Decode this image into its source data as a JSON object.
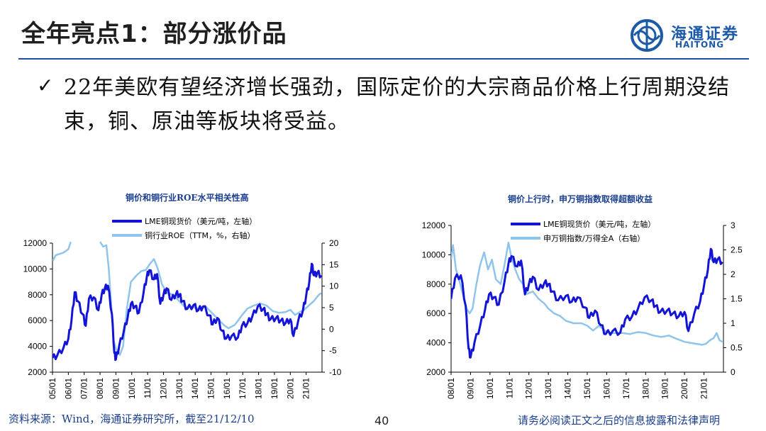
{
  "header": {
    "title": "全年亮点1：部分涨价品",
    "logo_cn": "海通证券",
    "logo_en": "HAITONG"
  },
  "bullet": {
    "check": "✓",
    "text": "22年美欧有望经济增长强劲，国际定价的大宗商品价格上行周期没结束，铜、原油等板块将受益。"
  },
  "footer": {
    "source": "资料来源：Wind，海通证券研究所，截至21/12/10",
    "page": "40",
    "disclaimer": "请务必阅读正文之后的信息披露和法律声明"
  },
  "colors": {
    "dark_blue": "#1414d6",
    "light_blue": "#8fc4ec",
    "brand": "#1c5aa8"
  },
  "chart_data": [
    {
      "type": "line",
      "title": "铜价和铜行业ROE水平相关性高",
      "x_tick_labels": [
        "05/01",
        "06/01",
        "07/01",
        "08/01",
        "09/01",
        "10/01",
        "11/01",
        "12/01",
        "13/01",
        "14/01",
        "15/01",
        "16/01",
        "17/01",
        "18/01",
        "19/01",
        "20/01",
        "21/01"
      ],
      "x_start_year": 2005,
      "y_left": {
        "ticks": [
          2000,
          4000,
          6000,
          8000,
          10000,
          12000
        ],
        "ylim": [
          2000,
          12000
        ]
      },
      "y_right": {
        "ticks": [
          -10,
          -5,
          0,
          5,
          10,
          15,
          20
        ],
        "ylim": [
          -10,
          20
        ]
      },
      "series": [
        {
          "name": "LME铜现货价（美元/吨，左轴）",
          "axis": "left",
          "color": "#1414d6",
          "width": 3,
          "points": [
            [
              2005.0,
              3100
            ],
            [
              2005.3,
              3300
            ],
            [
              2005.7,
              3900
            ],
            [
              2006.0,
              4600
            ],
            [
              2006.2,
              6000
            ],
            [
              2006.4,
              8200
            ],
            [
              2006.6,
              7500
            ],
            [
              2006.9,
              6500
            ],
            [
              2007.1,
              5600
            ],
            [
              2007.3,
              7700
            ],
            [
              2007.6,
              7800
            ],
            [
              2007.9,
              6800
            ],
            [
              2008.1,
              8000
            ],
            [
              2008.3,
              8500
            ],
            [
              2008.5,
              8700
            ],
            [
              2008.75,
              6500
            ],
            [
              2008.9,
              3500
            ],
            [
              2009.0,
              3000
            ],
            [
              2009.2,
              4000
            ],
            [
              2009.5,
              5200
            ],
            [
              2009.75,
              6300
            ],
            [
              2009.95,
              7300
            ],
            [
              2010.2,
              7100
            ],
            [
              2010.45,
              6600
            ],
            [
              2010.75,
              8200
            ],
            [
              2010.95,
              9400
            ],
            [
              2011.1,
              9900
            ],
            [
              2011.4,
              9200
            ],
            [
              2011.6,
              9600
            ],
            [
              2011.8,
              7300
            ],
            [
              2012.0,
              8000
            ],
            [
              2012.2,
              8500
            ],
            [
              2012.5,
              7600
            ],
            [
              2012.8,
              8100
            ],
            [
              2013.0,
              8000
            ],
            [
              2013.2,
              7500
            ],
            [
              2013.5,
              6900
            ],
            [
              2013.9,
              7200
            ],
            [
              2014.2,
              6800
            ],
            [
              2014.5,
              7100
            ],
            [
              2014.9,
              6400
            ],
            [
              2015.1,
              5700
            ],
            [
              2015.4,
              6200
            ],
            [
              2015.7,
              5200
            ],
            [
              2015.95,
              4600
            ],
            [
              2016.3,
              4800
            ],
            [
              2016.7,
              4700
            ],
            [
              2016.95,
              5600
            ],
            [
              2017.3,
              5800
            ],
            [
              2017.6,
              6300
            ],
            [
              2017.95,
              7100
            ],
            [
              2018.3,
              6900
            ],
            [
              2018.5,
              6500
            ],
            [
              2018.75,
              6100
            ],
            [
              2019.1,
              6200
            ],
            [
              2019.4,
              6000
            ],
            [
              2019.7,
              5800
            ],
            [
              2020.0,
              6100
            ],
            [
              2020.2,
              4800
            ],
            [
              2020.5,
              6000
            ],
            [
              2020.8,
              6800
            ],
            [
              2021.0,
              7900
            ],
            [
              2021.2,
              9000
            ],
            [
              2021.35,
              10400
            ],
            [
              2021.5,
              9500
            ],
            [
              2021.7,
              9700
            ],
            [
              2021.95,
              9500
            ]
          ]
        },
        {
          "name": "铜行业ROE（TTM，%，右轴）",
          "axis": "right",
          "color": "#8fc4ec",
          "width": 2.5,
          "points": [
            [
              2005.0,
              15.8
            ],
            [
              2005.2,
              17.2
            ],
            [
              2005.45,
              17.5
            ],
            [
              2005.7,
              17.8
            ],
            [
              2006.0,
              18.6
            ],
            [
              2006.15,
              20.3
            ]
          ],
          "points2": [
            [
              2008.0,
              20.3
            ],
            [
              2008.2,
              19.2
            ],
            [
              2008.4,
              19.5
            ],
            [
              2008.55,
              14.0
            ],
            [
              2008.7,
              6.0
            ],
            [
              2008.85,
              -2.5
            ],
            [
              2009.0,
              -4.5
            ],
            [
              2009.25,
              -6.0
            ],
            [
              2009.45,
              -4.0
            ],
            [
              2009.7,
              5.0
            ],
            [
              2009.95,
              11.0
            ],
            [
              2010.3,
              12.5
            ],
            [
              2010.6,
              13.5
            ],
            [
              2010.9,
              13.8
            ],
            [
              2011.15,
              15.2
            ],
            [
              2011.4,
              16.3
            ],
            [
              2011.65,
              14.0
            ],
            [
              2011.9,
              10.5
            ],
            [
              2012.2,
              8.5
            ],
            [
              2012.6,
              8.0
            ],
            [
              2013.0,
              6.5
            ],
            [
              2013.4,
              5.0
            ],
            [
              2013.8,
              5.3
            ],
            [
              2014.2,
              4.6
            ],
            [
              2014.6,
              5.5
            ],
            [
              2015.0,
              4.0
            ],
            [
              2015.4,
              2.5
            ],
            [
              2015.8,
              1.0
            ],
            [
              2016.1,
              0.2
            ],
            [
              2016.5,
              1.0
            ],
            [
              2016.9,
              3.0
            ],
            [
              2017.3,
              4.8
            ],
            [
              2017.7,
              5.5
            ],
            [
              2018.1,
              6.0
            ],
            [
              2018.5,
              5.5
            ],
            [
              2018.9,
              4.2
            ],
            [
              2019.3,
              3.8
            ],
            [
              2019.7,
              4.0
            ],
            [
              2020.0,
              4.5
            ],
            [
              2020.3,
              3.3
            ],
            [
              2020.6,
              4.0
            ],
            [
              2020.9,
              4.6
            ],
            [
              2021.2,
              5.6
            ],
            [
              2021.5,
              6.6
            ],
            [
              2021.8,
              8.0
            ],
            [
              2021.95,
              8.4
            ]
          ]
        }
      ]
    },
    {
      "type": "line",
      "title": "铜价上行时，申万铜指数取得超额收益",
      "x_tick_labels": [
        "08/01",
        "09/01",
        "10/01",
        "11/01",
        "12/01",
        "13/01",
        "14/01",
        "15/01",
        "16/01",
        "17/01",
        "18/01",
        "19/01",
        "20/01",
        "21/01"
      ],
      "x_start_year": 2008,
      "y_left": {
        "ticks": [
          2000,
          4000,
          6000,
          8000,
          10000,
          12000
        ],
        "ylim": [
          2000,
          12000
        ]
      },
      "y_right": {
        "ticks": [
          "0",
          "0.5",
          "1",
          "1.5",
          "2",
          "2.5",
          "3"
        ],
        "ylim": [
          0,
          3
        ]
      },
      "series": [
        {
          "name": "LME铜现货价（美元/吨，左轴）",
          "axis": "left",
          "color": "#1414d6",
          "width": 3,
          "points": [
            [
              2008.0,
              7000
            ],
            [
              2008.2,
              8400
            ],
            [
              2008.5,
              8600
            ],
            [
              2008.75,
              6500
            ],
            [
              2008.9,
              3600
            ],
            [
              2009.0,
              3000
            ],
            [
              2009.2,
              4000
            ],
            [
              2009.5,
              5200
            ],
            [
              2009.75,
              6300
            ],
            [
              2009.95,
              7300
            ],
            [
              2010.2,
              7100
            ],
            [
              2010.45,
              6600
            ],
            [
              2010.75,
              8200
            ],
            [
              2010.95,
              9400
            ],
            [
              2011.1,
              9900
            ],
            [
              2011.4,
              9200
            ],
            [
              2011.6,
              9600
            ],
            [
              2011.8,
              7300
            ],
            [
              2012.0,
              8000
            ],
            [
              2012.2,
              8500
            ],
            [
              2012.5,
              7600
            ],
            [
              2012.8,
              8100
            ],
            [
              2013.0,
              8000
            ],
            [
              2013.2,
              7500
            ],
            [
              2013.5,
              6900
            ],
            [
              2013.9,
              7200
            ],
            [
              2014.2,
              6800
            ],
            [
              2014.5,
              7100
            ],
            [
              2014.9,
              6400
            ],
            [
              2015.1,
              5700
            ],
            [
              2015.4,
              6200
            ],
            [
              2015.7,
              5200
            ],
            [
              2015.95,
              4600
            ],
            [
              2016.3,
              4800
            ],
            [
              2016.7,
              4700
            ],
            [
              2016.95,
              5600
            ],
            [
              2017.3,
              5800
            ],
            [
              2017.6,
              6300
            ],
            [
              2017.95,
              7100
            ],
            [
              2018.3,
              6900
            ],
            [
              2018.5,
              6500
            ],
            [
              2018.75,
              6100
            ],
            [
              2019.1,
              6200
            ],
            [
              2019.4,
              6000
            ],
            [
              2019.7,
              5800
            ],
            [
              2020.0,
              6100
            ],
            [
              2020.2,
              4800
            ],
            [
              2020.5,
              6000
            ],
            [
              2020.8,
              6800
            ],
            [
              2021.0,
              7900
            ],
            [
              2021.2,
              9000
            ],
            [
              2021.35,
              10400
            ],
            [
              2021.5,
              9500
            ],
            [
              2021.7,
              9700
            ],
            [
              2021.95,
              9500
            ]
          ]
        },
        {
          "name": "申万铜指数/万得全A（右轴）",
          "axis": "right",
          "color": "#8fc4ec",
          "width": 2.5,
          "points": [
            [
              2008.0,
              2.3
            ],
            [
              2008.1,
              2.6
            ],
            [
              2008.25,
              2.1
            ],
            [
              2008.4,
              1.9
            ],
            [
              2008.6,
              1.6
            ],
            [
              2008.8,
              1.3
            ],
            [
              2008.95,
              1.2
            ],
            [
              2009.1,
              1.3
            ],
            [
              2009.3,
              1.8
            ],
            [
              2009.5,
              2.2
            ],
            [
              2009.7,
              2.45
            ],
            [
              2009.9,
              2.1
            ],
            [
              2010.1,
              2.3
            ],
            [
              2010.3,
              1.9
            ],
            [
              2010.55,
              1.8
            ],
            [
              2010.75,
              2.2
            ],
            [
              2010.95,
              2.65
            ],
            [
              2011.1,
              2.35
            ],
            [
              2011.3,
              2.1
            ],
            [
              2011.5,
              1.9
            ],
            [
              2011.7,
              1.8
            ],
            [
              2011.9,
              1.6
            ],
            [
              2012.2,
              1.65
            ],
            [
              2012.5,
              1.5
            ],
            [
              2012.8,
              1.4
            ],
            [
              2013.0,
              1.3
            ],
            [
              2013.3,
              1.2
            ],
            [
              2013.6,
              1.15
            ],
            [
              2013.9,
              1.05
            ],
            [
              2014.3,
              1.0
            ],
            [
              2014.7,
              1.0
            ],
            [
              2015.0,
              0.95
            ],
            [
              2015.3,
              0.85
            ],
            [
              2015.6,
              0.95
            ],
            [
              2015.9,
              0.85
            ],
            [
              2016.2,
              0.8
            ],
            [
              2016.5,
              0.8
            ],
            [
              2016.8,
              0.8
            ],
            [
              2017.2,
              0.78
            ],
            [
              2017.6,
              0.82
            ],
            [
              2018.0,
              0.8
            ],
            [
              2018.4,
              0.75
            ],
            [
              2018.8,
              0.72
            ],
            [
              2019.2,
              0.75
            ],
            [
              2019.6,
              0.68
            ],
            [
              2020.0,
              0.62
            ],
            [
              2020.3,
              0.6
            ],
            [
              2020.6,
              0.58
            ],
            [
              2020.9,
              0.56
            ],
            [
              2021.1,
              0.58
            ],
            [
              2021.3,
              0.65
            ],
            [
              2021.5,
              0.7
            ],
            [
              2021.65,
              0.8
            ],
            [
              2021.8,
              0.65
            ],
            [
              2021.95,
              0.62
            ]
          ]
        }
      ]
    }
  ]
}
